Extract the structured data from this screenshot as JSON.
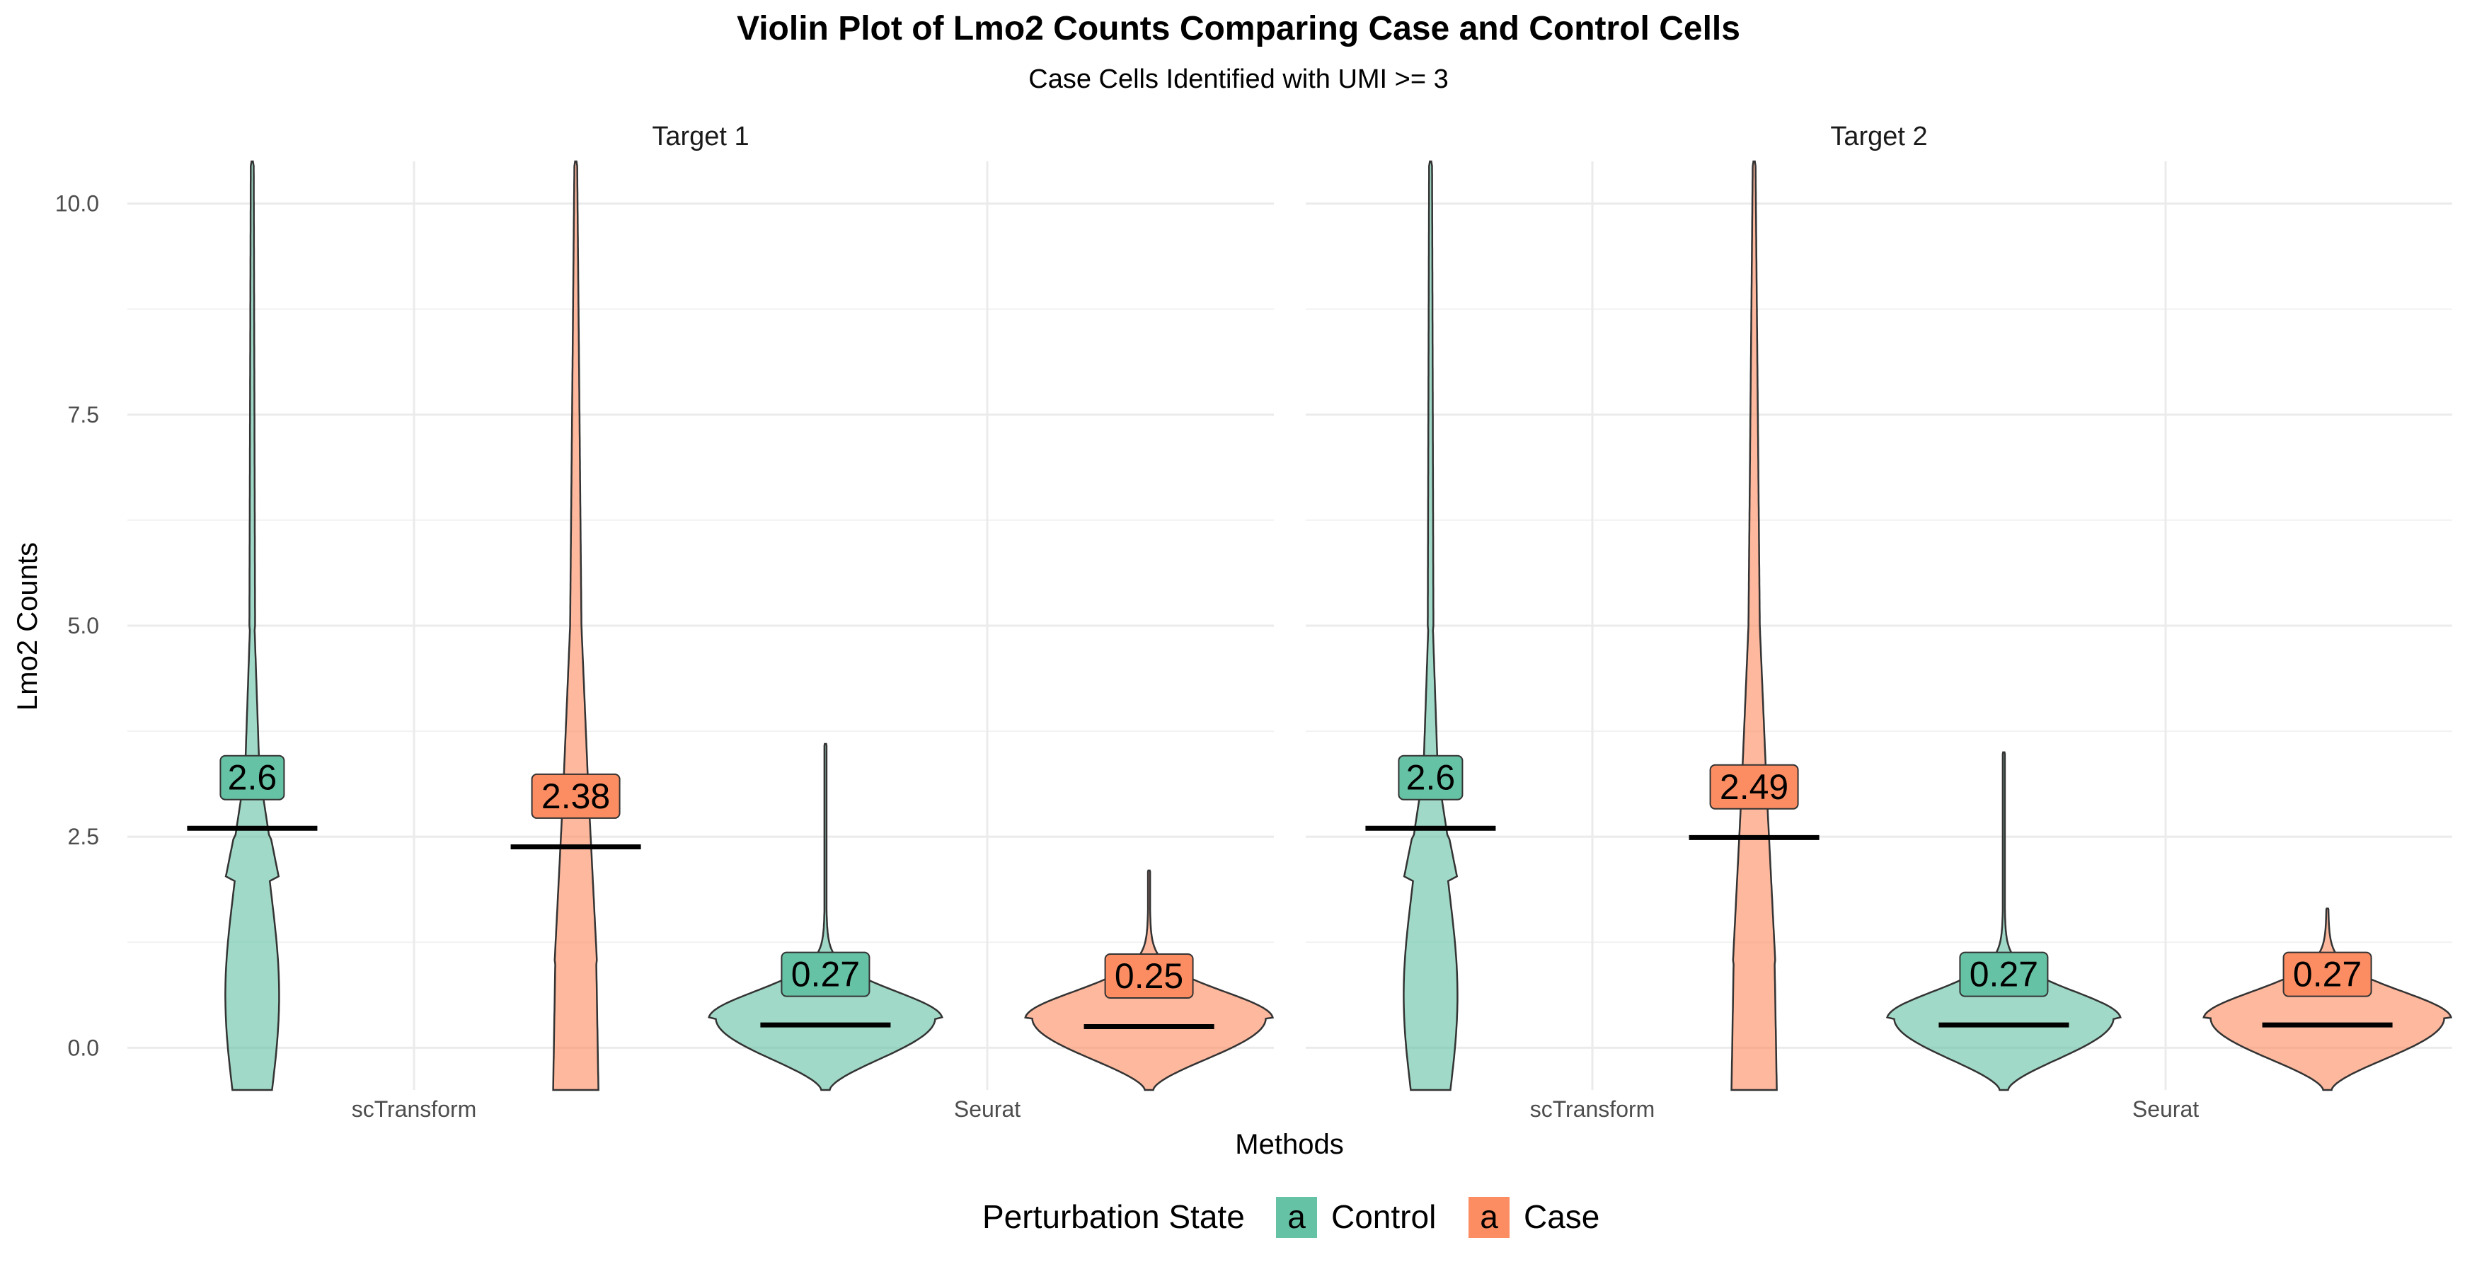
{
  "chart_data": {
    "type": "violin",
    "title": "Violin Plot of Lmo2 Counts Comparing Case and Control Cells",
    "subtitle": "Case Cells Identified with UMI >= 3",
    "xlabel": "Methods",
    "ylabel": "Lmo2 Counts",
    "ylim": [
      -0.5,
      10.5
    ],
    "yticks": [
      0.0,
      2.5,
      5.0,
      7.5,
      10.0
    ],
    "ytick_labels": [
      "0.0",
      "2.5",
      "5.0",
      "7.5",
      "10.0"
    ],
    "categories": [
      "scTransform",
      "Seurat"
    ],
    "grid": true,
    "legend": {
      "title": "Perturbation State",
      "position": "bottom",
      "key_glyph": "a",
      "entries": [
        {
          "name": "Control",
          "color": "#66C2A5"
        },
        {
          "name": "Case",
          "color": "#FC8D62"
        }
      ]
    },
    "facets": [
      {
        "label": "Target 1",
        "groups": [
          {
            "category": "scTransform",
            "state": "Control",
            "mean": 2.6,
            "label": "2.6",
            "ymax": 10.5
          },
          {
            "category": "scTransform",
            "state": "Case",
            "mean": 2.38,
            "label": "2.38",
            "ymax": 10.5
          },
          {
            "category": "Seurat",
            "state": "Control",
            "mean": 0.27,
            "label": "0.27",
            "ymax": 3.6
          },
          {
            "category": "Seurat",
            "state": "Case",
            "mean": 0.25,
            "label": "0.25",
            "ymax": 2.1
          }
        ]
      },
      {
        "label": "Target 2",
        "groups": [
          {
            "category": "scTransform",
            "state": "Control",
            "mean": 2.6,
            "label": "2.6",
            "ymax": 10.5
          },
          {
            "category": "scTransform",
            "state": "Case",
            "mean": 2.49,
            "label": "2.49",
            "ymax": 10.5
          },
          {
            "category": "Seurat",
            "state": "Control",
            "mean": 0.27,
            "label": "0.27",
            "ymax": 3.5
          },
          {
            "category": "Seurat",
            "state": "Case",
            "mean": 0.27,
            "label": "0.27",
            "ymax": 1.65
          }
        ]
      }
    ]
  }
}
